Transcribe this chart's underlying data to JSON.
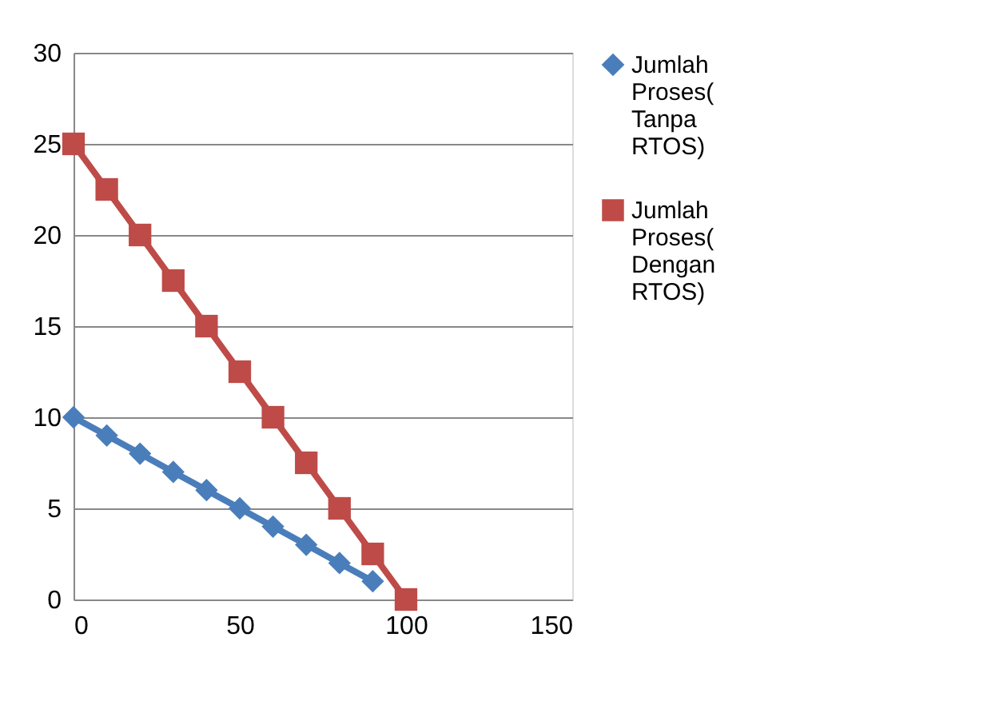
{
  "chart_data": {
    "type": "line",
    "x": [
      0,
      10,
      20,
      30,
      40,
      50,
      60,
      70,
      80,
      90,
      100
    ],
    "series": [
      {
        "name": "Jumlah Proses( Tanpa RTOS)",
        "color": "#4a7ebb",
        "marker": "diamond",
        "x": [
          0,
          10,
          20,
          30,
          40,
          50,
          60,
          70,
          80,
          90
        ],
        "values": [
          10,
          9,
          8,
          7,
          6,
          5,
          4,
          3,
          2,
          1
        ]
      },
      {
        "name": "Jumlah Proses( Dengan RTOS)",
        "color": "#be4b48",
        "marker": "square",
        "values": [
          25,
          22.5,
          20,
          17.5,
          15,
          12.5,
          10,
          7.5,
          5,
          2.5,
          0
        ]
      }
    ],
    "xlim": [
      0,
      150
    ],
    "xticks": [
      0,
      50,
      100,
      150
    ],
    "ylim": [
      0,
      30
    ],
    "yticks": [
      0,
      5,
      10,
      15,
      20,
      25,
      30
    ],
    "grid": "y",
    "legend": "right",
    "line_style": "solid"
  }
}
